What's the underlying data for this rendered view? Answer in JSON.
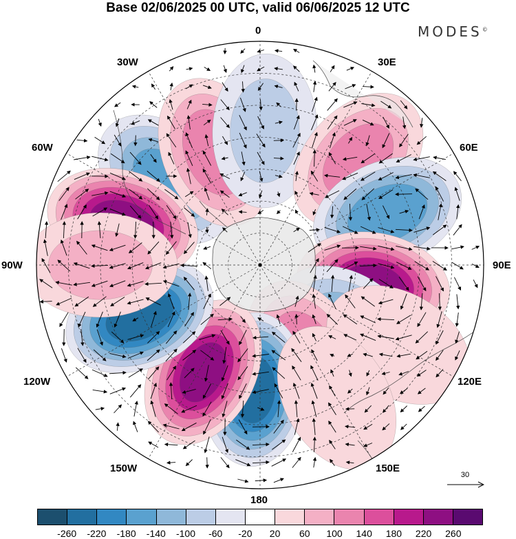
{
  "title": "Base 02/06/2025 00 UTC, valid 06/06/2025 12 UTC",
  "brand": {
    "name": "MODES",
    "mark": "©"
  },
  "longitude_labels": {
    "lon_0": "0",
    "lon_30e": "30E",
    "lon_60e": "60E",
    "lon_90e": "90E",
    "lon_120e": "120E",
    "lon_150e": "150E",
    "lon_180": "180",
    "lon_150w": "150W",
    "lon_120w": "120W",
    "lon_90w": "90W",
    "lon_60w": "60W",
    "lon_30w": "30W"
  },
  "vector_scale": {
    "label": "30"
  },
  "colorbar": {
    "colors": [
      "#1c4f6e",
      "#226fa0",
      "#3288c2",
      "#5aa1cf",
      "#8fb8d9",
      "#bccde6",
      "#e4e5f1",
      "#ffffff",
      "#f9d8dc",
      "#f4b0c5",
      "#ea84ae",
      "#dc4f9c",
      "#b8198c",
      "#8e0f82",
      "#5a0a70"
    ],
    "ticks": [
      "-260",
      "-220",
      "-180",
      "-140",
      "-100",
      "-60",
      "-20",
      "20",
      "60",
      "100",
      "140",
      "180",
      "220",
      "260"
    ]
  },
  "anomaly_centers": [
    {
      "lon": -48,
      "lat": -50,
      "value": -150
    },
    {
      "lon": -22,
      "lat": -52,
      "value": 120
    },
    {
      "lon": 2,
      "lat": -48,
      "value": -70
    },
    {
      "lon": 43,
      "lat": -45,
      "value": 110
    },
    {
      "lon": 68,
      "lat": -47,
      "value": -170
    },
    {
      "lon": 100,
      "lat": -54,
      "value": 230
    },
    {
      "lon": 125,
      "lat": -56,
      "value": -120
    },
    {
      "lon": 153,
      "lat": -59,
      "value": 120
    },
    {
      "lon": -177,
      "lat": -51,
      "value": -240
    },
    {
      "lon": -152,
      "lat": -52,
      "value": 230
    },
    {
      "lon": -113,
      "lat": -49,
      "value": -250
    },
    {
      "lon": -73,
      "lat": -45,
      "value": 240
    },
    {
      "lon": -90,
      "lat": -40,
      "value": 70
    },
    {
      "lon": 120,
      "lat": -40,
      "value": 40
    },
    {
      "lon": 150,
      "lat": -42,
      "value": 40
    }
  ]
}
